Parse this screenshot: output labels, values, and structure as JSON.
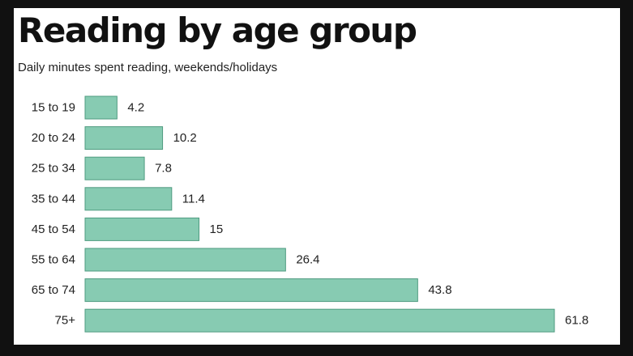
{
  "chart_data": {
    "type": "bar",
    "orientation": "horizontal",
    "title": "Reading by age group",
    "subtitle": "Daily minutes spent reading, weekends/holidays",
    "categories": [
      "15 to 19",
      "20 to 24",
      "25 to 34",
      "35 to 44",
      "45 to 54",
      "55 to 64",
      "65 to 74",
      "75+"
    ],
    "values": [
      4.2,
      10.2,
      7.8,
      11.4,
      15,
      26.4,
      43.8,
      61.8
    ],
    "value_labels": [
      "4.2",
      "10.2",
      "7.8",
      "11.4",
      "15",
      "26.4",
      "43.8",
      "61.8"
    ],
    "xlim": [
      0,
      61.8
    ],
    "grid": false,
    "legend": "none",
    "bar_color": "#87cbb2",
    "bar_edge_color": "#4f9b80",
    "background_color": "#ffffff",
    "frame_color": "#111111"
  }
}
